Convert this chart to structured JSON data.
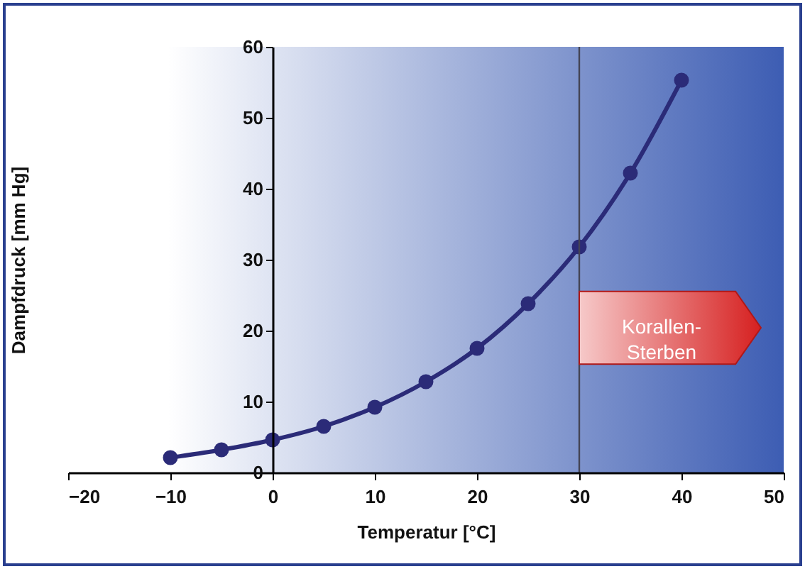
{
  "chart_data": {
    "type": "line",
    "xlabel": "Temperatur [°C]",
    "ylabel": "Dampfdruck [mm Hg]",
    "x": [
      -10,
      -5,
      0,
      5,
      10,
      15,
      20,
      25,
      30,
      35,
      40
    ],
    "series": [
      {
        "color": "#2b2b78",
        "values": [
          2.1,
          3.2,
          4.6,
          6.5,
          9.2,
          12.8,
          17.5,
          23.8,
          31.8,
          42.2,
          55.3
        ]
      }
    ],
    "xlim": [
      -20,
      50
    ],
    "xticks": [
      -20,
      -10,
      0,
      10,
      20,
      30,
      40,
      50
    ],
    "ylim": [
      0,
      60
    ],
    "yticks": [
      0,
      10,
      20,
      30,
      40,
      50,
      60
    ],
    "marker": "circle",
    "line_style": "solid",
    "grid": false,
    "ref_lines": [
      {
        "axis": "x",
        "value": 30,
        "color": "#444455"
      }
    ],
    "bands": [
      {
        "axis": "x",
        "from": -20,
        "to": 50,
        "color": "#3d5db3"
      }
    ],
    "annotations": [
      "Korallen-\nSterben"
    ]
  }
}
